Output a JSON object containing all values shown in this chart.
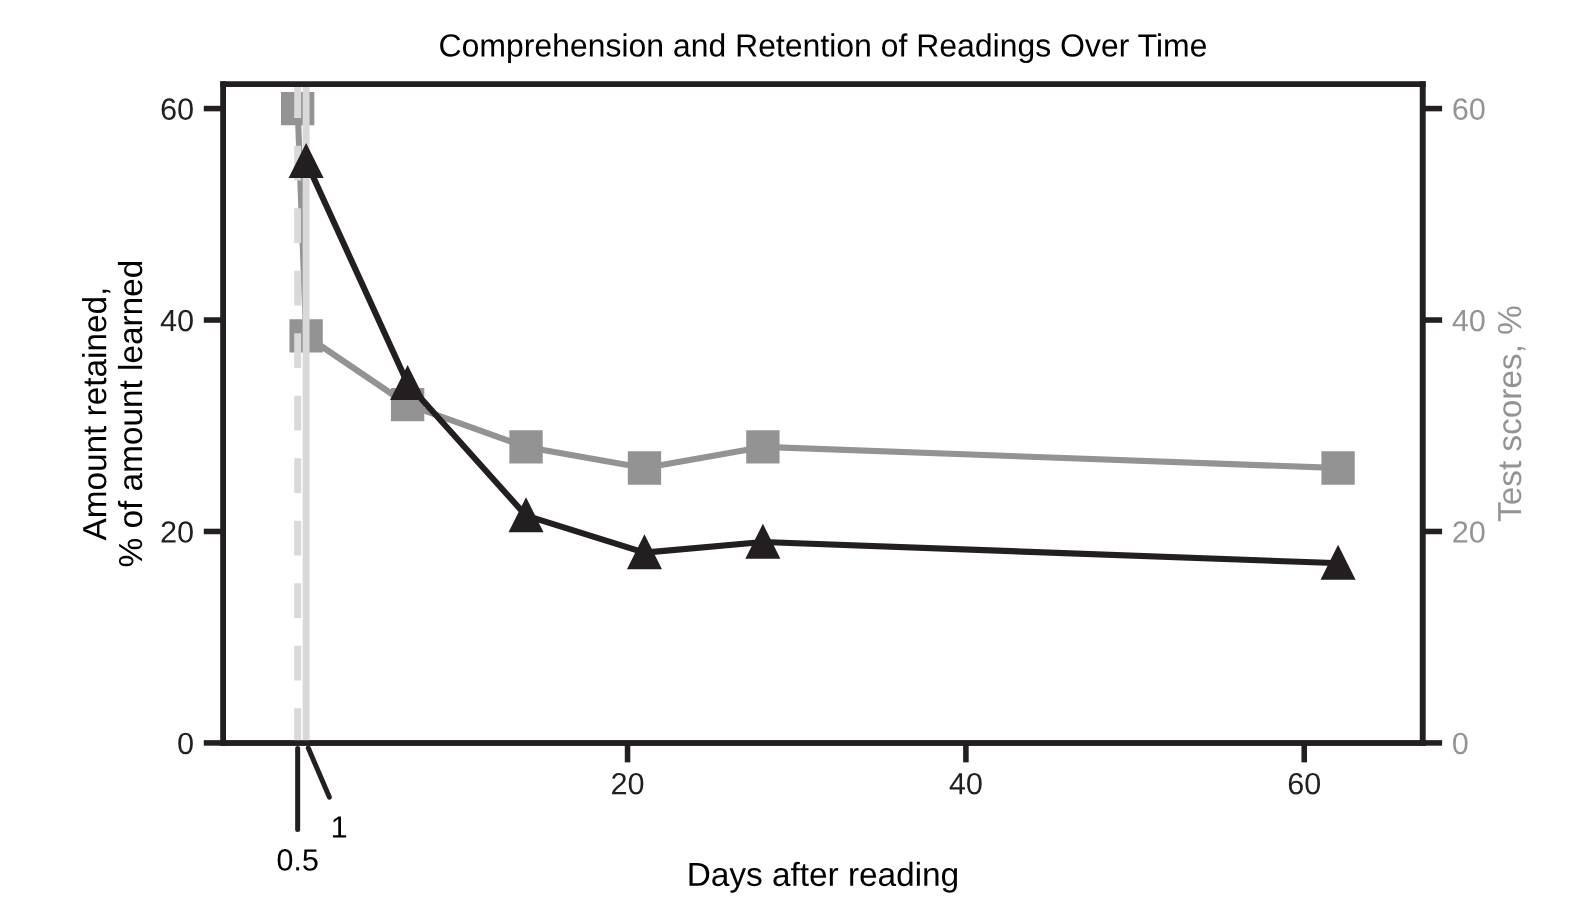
{
  "chart_data": {
    "type": "line",
    "title": "Comprehension and Retention of Readings Over Time",
    "xlabel": "Days after reading",
    "ylabel": "Amount retained,\n% of amount learned",
    "y2label": "Test scores, %",
    "series": [
      {
        "name": null,
        "color": "#231f20",
        "marker": "triangle",
        "x": [
          1,
          7,
          14,
          21,
          28,
          62
        ],
        "values": [
          55,
          34,
          21.5,
          18,
          19,
          17
        ]
      },
      {
        "name": null,
        "color": "#939393",
        "marker": "square",
        "axis": "y2",
        "x": [
          0.5,
          1,
          7,
          14,
          21,
          28,
          62
        ],
        "values": [
          60,
          38.5,
          32,
          28,
          26,
          28,
          26
        ]
      }
    ],
    "xlim": [
      -3.9,
      67
    ],
    "xticks": [
      20,
      40,
      60
    ],
    "ylim": [
      0,
      62.3
    ],
    "yticks": [
      0,
      20,
      40,
      60
    ],
    "y2lim": [
      0,
      62.3
    ],
    "y2ticks": [
      0,
      20,
      40,
      60
    ],
    "ref_lines": [
      {
        "axis": "x",
        "value": 0.5,
        "label": "0.5",
        "color": "#d9d9d9",
        "line_style": "dashed"
      },
      {
        "axis": "x",
        "value": 1,
        "label": "1",
        "color": "#d9d9d9",
        "line_style": "solid"
      }
    ],
    "grid": false,
    "legend": false
  }
}
